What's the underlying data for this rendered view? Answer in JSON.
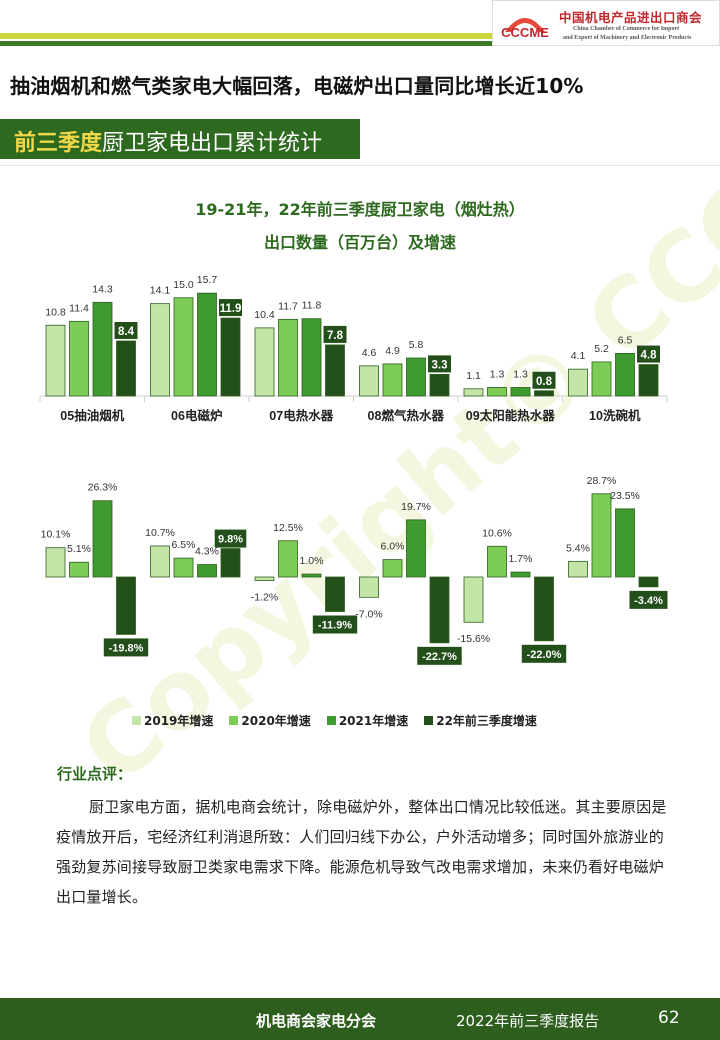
{
  "header": {
    "logo_text": "CCCME",
    "org_cn": "中国机电产品进出口商会",
    "org_en_line1": "China Chamber of Commerce for Import",
    "org_en_line2": "and Export of Machinery and Electronic Products"
  },
  "headline": "抽油烟机和燃气类家电大幅回落，电磁炉出口量同比增长近10%",
  "section": {
    "title_accent": "前三季度",
    "title_rest": "厨卫家电出口累计统计"
  },
  "colors": {
    "s2019": "#c3e6a8",
    "s2020": "#7dcc57",
    "s2021": "#3f9b2f",
    "s2022": "#234f1a",
    "brand_green": "#2d6a1f"
  },
  "chart_data": [
    {
      "type": "bar",
      "title": "19-21年，22年前三季度厨卫家电（烟灶热）",
      "subtitle": "出口数量（百万台）及增速",
      "categories": [
        "05抽油烟机",
        "06电磁炉",
        "07电热水器",
        "08燃气热水器",
        "09太阳能热水器",
        "10洗碗机"
      ],
      "series": [
        {
          "name": "2019",
          "values": [
            10.8,
            14.1,
            10.4,
            4.6,
            1.1,
            4.1
          ]
        },
        {
          "name": "2020",
          "values": [
            11.4,
            15.0,
            11.7,
            4.9,
            1.3,
            5.2
          ]
        },
        {
          "name": "2021",
          "values": [
            14.3,
            15.7,
            11.8,
            5.8,
            1.3,
            6.5
          ]
        },
        {
          "name": "22年前三季度",
          "values": [
            8.4,
            11.9,
            7.8,
            3.3,
            0.8,
            4.8
          ]
        }
      ],
      "ylim": [
        0,
        16
      ]
    },
    {
      "type": "bar",
      "categories": [
        "05抽油烟机",
        "06电磁炉",
        "07电热水器",
        "08燃气热水器",
        "09太阳能热水器",
        "10洗碗机"
      ],
      "series": [
        {
          "name": "2019年增速",
          "values": [
            10.1,
            10.7,
            -1.2,
            -7.0,
            -15.6,
            5.4
          ]
        },
        {
          "name": "2020年增速",
          "values": [
            5.1,
            6.5,
            12.5,
            6.0,
            10.6,
            28.7
          ]
        },
        {
          "name": "2021年增速",
          "values": [
            26.3,
            4.3,
            1.0,
            19.7,
            1.7,
            23.5
          ]
        },
        {
          "name": "22年前三季度增速",
          "values": [
            -19.8,
            9.8,
            -11.9,
            -22.7,
            -22.0,
            -3.4
          ]
        }
      ],
      "unit": "%",
      "legend": "bottom"
    }
  ],
  "legend_labels": [
    "2019年增速",
    "2020年增速",
    "2021年增速",
    "22年前三季度增速"
  ],
  "commentary": {
    "heading": "行业点评：",
    "body": "厨卫家电方面，据机电商会统计，除电磁炉外，整体出口情况比较低迷。其主要原因是疫情放开后，宅经济红利消退所致：人们回归线下办公，户外活动增多；同时国外旅游业的强劲复苏间接导致厨卫类家电需求下降。能源危机导致气改电需求增加，未来仍看好电磁炉出口量增长。"
  },
  "watermark": "Copyright© CCCME",
  "footer": {
    "org": "机电商会家电分会",
    "report": "2022年前三季度报告",
    "page": "62"
  }
}
